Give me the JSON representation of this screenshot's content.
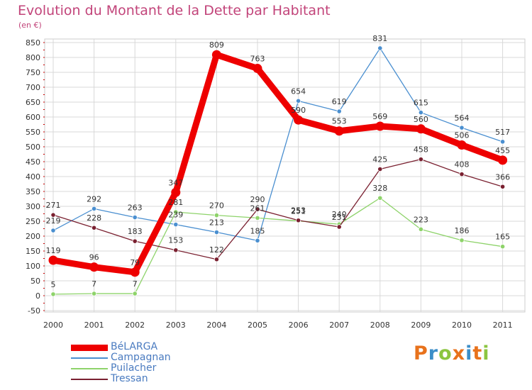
{
  "header": {
    "title": "Evolution du Montant de la Dette par Habitant",
    "subtitle": "(en €)"
  },
  "brand": {
    "letters": [
      "P",
      "r",
      "o",
      "x",
      "i",
      "t",
      "i"
    ],
    "colors": [
      "#e8721c",
      "#3b8ec8",
      "#8bc540",
      "#e8721c",
      "#3b8ec8",
      "#e8721c",
      "#8bc540"
    ]
  },
  "chart_data": {
    "type": "line",
    "title": "Evolution du Montant de la Dette par Habitant",
    "subtitle": "(en €)",
    "categories": [
      "2000",
      "2001",
      "2002",
      "2003",
      "2004",
      "2005",
      "2006",
      "2007",
      "2008",
      "2009",
      "2010",
      "2011"
    ],
    "ylim": [
      -50,
      850
    ],
    "yticks": [
      -50,
      0,
      50,
      100,
      150,
      200,
      250,
      300,
      350,
      400,
      450,
      500,
      550,
      600,
      650,
      700,
      750,
      800,
      850
    ],
    "grid": true,
    "legend_position": "bottom-left",
    "series": [
      {
        "name": "Campagnan",
        "color": "#4a8fd0",
        "values": [
          219,
          292,
          263,
          239,
          213,
          185,
          654,
          619,
          831,
          615,
          564,
          517
        ]
      },
      {
        "name": "Puilacher",
        "color": "#8ed36a",
        "values": [
          5,
          7,
          7,
          281,
          270,
          261,
          251,
          240,
          328,
          223,
          186,
          165
        ]
      },
      {
        "name": "Tressan",
        "color": "#7a2030",
        "values": [
          271,
          228,
          183,
          153,
          122,
          290,
          253,
          231,
          425,
          458,
          408,
          366
        ]
      },
      {
        "name": "BéLARGA",
        "color": "#ee0000",
        "values": [
          119,
          96,
          79,
          347,
          809,
          763,
          590,
          553,
          569,
          560,
          506,
          455
        ]
      }
    ],
    "legend_order": [
      "BéLARGA",
      "Campagnan",
      "Puilacher",
      "Tressan"
    ]
  }
}
